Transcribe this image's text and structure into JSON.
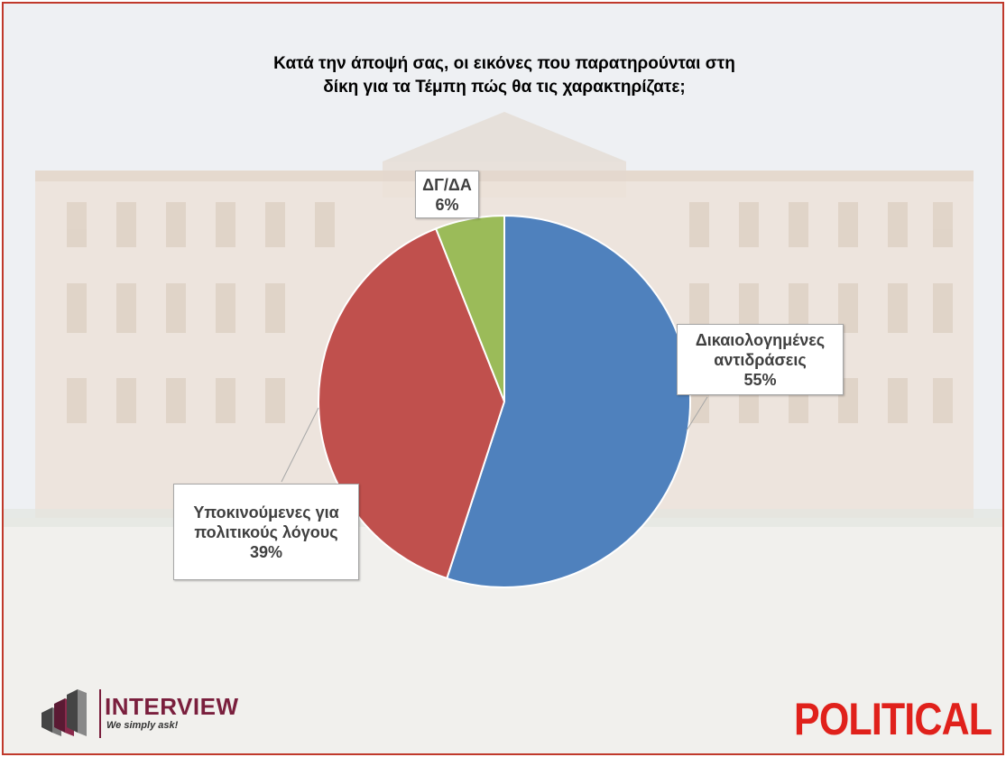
{
  "title": "Κατά την άποψή σας, οι εικόνες που παρατηρούνται στη δίκη για τα Τέμπη πώς θα τις χαρακτηρίζατε;",
  "chart_data": {
    "type": "pie",
    "title": "Κατά την άποψή σας, οι εικόνες που παρατηρούνται στη δίκη για τα Τέμπη πώς θα τις χαρακτηρίζατε;",
    "slices": [
      {
        "label": "Δικαιολογημένες αντιδράσεις",
        "value": 55,
        "value_label": "55%",
        "color": "#4f81bd"
      },
      {
        "label": "Υποκινούμενες για πολιτικούς λόγους",
        "value": 39,
        "value_label": "39%",
        "color": "#c0504d"
      },
      {
        "label": "ΔΓ/ΔΑ",
        "value": 6,
        "value_label": "6%",
        "color": "#9bbb59"
      }
    ],
    "start_angle": "12 o'clock",
    "direction": "clockwise",
    "legend": "none",
    "data_labels": "callouts"
  },
  "callouts": {
    "justified": {
      "line1": "Δικαιολογημένες",
      "line2": "αντιδράσεις",
      "pct": "55%"
    },
    "political": {
      "line1": "Υποκινούμενες για",
      "line2": "πολιτικούς λόγους",
      "pct": "39%"
    },
    "dk": {
      "line1": "ΔΓ/ΔΑ",
      "pct": "6%"
    }
  },
  "logos": {
    "interview": {
      "brand": "INTERVIEW",
      "tagline": "We simply ask!"
    },
    "political": "POLITICAL"
  },
  "colors": {
    "frame": "#c0392b",
    "interview_brand": "#7a1f3d",
    "political": "#e0211b"
  }
}
